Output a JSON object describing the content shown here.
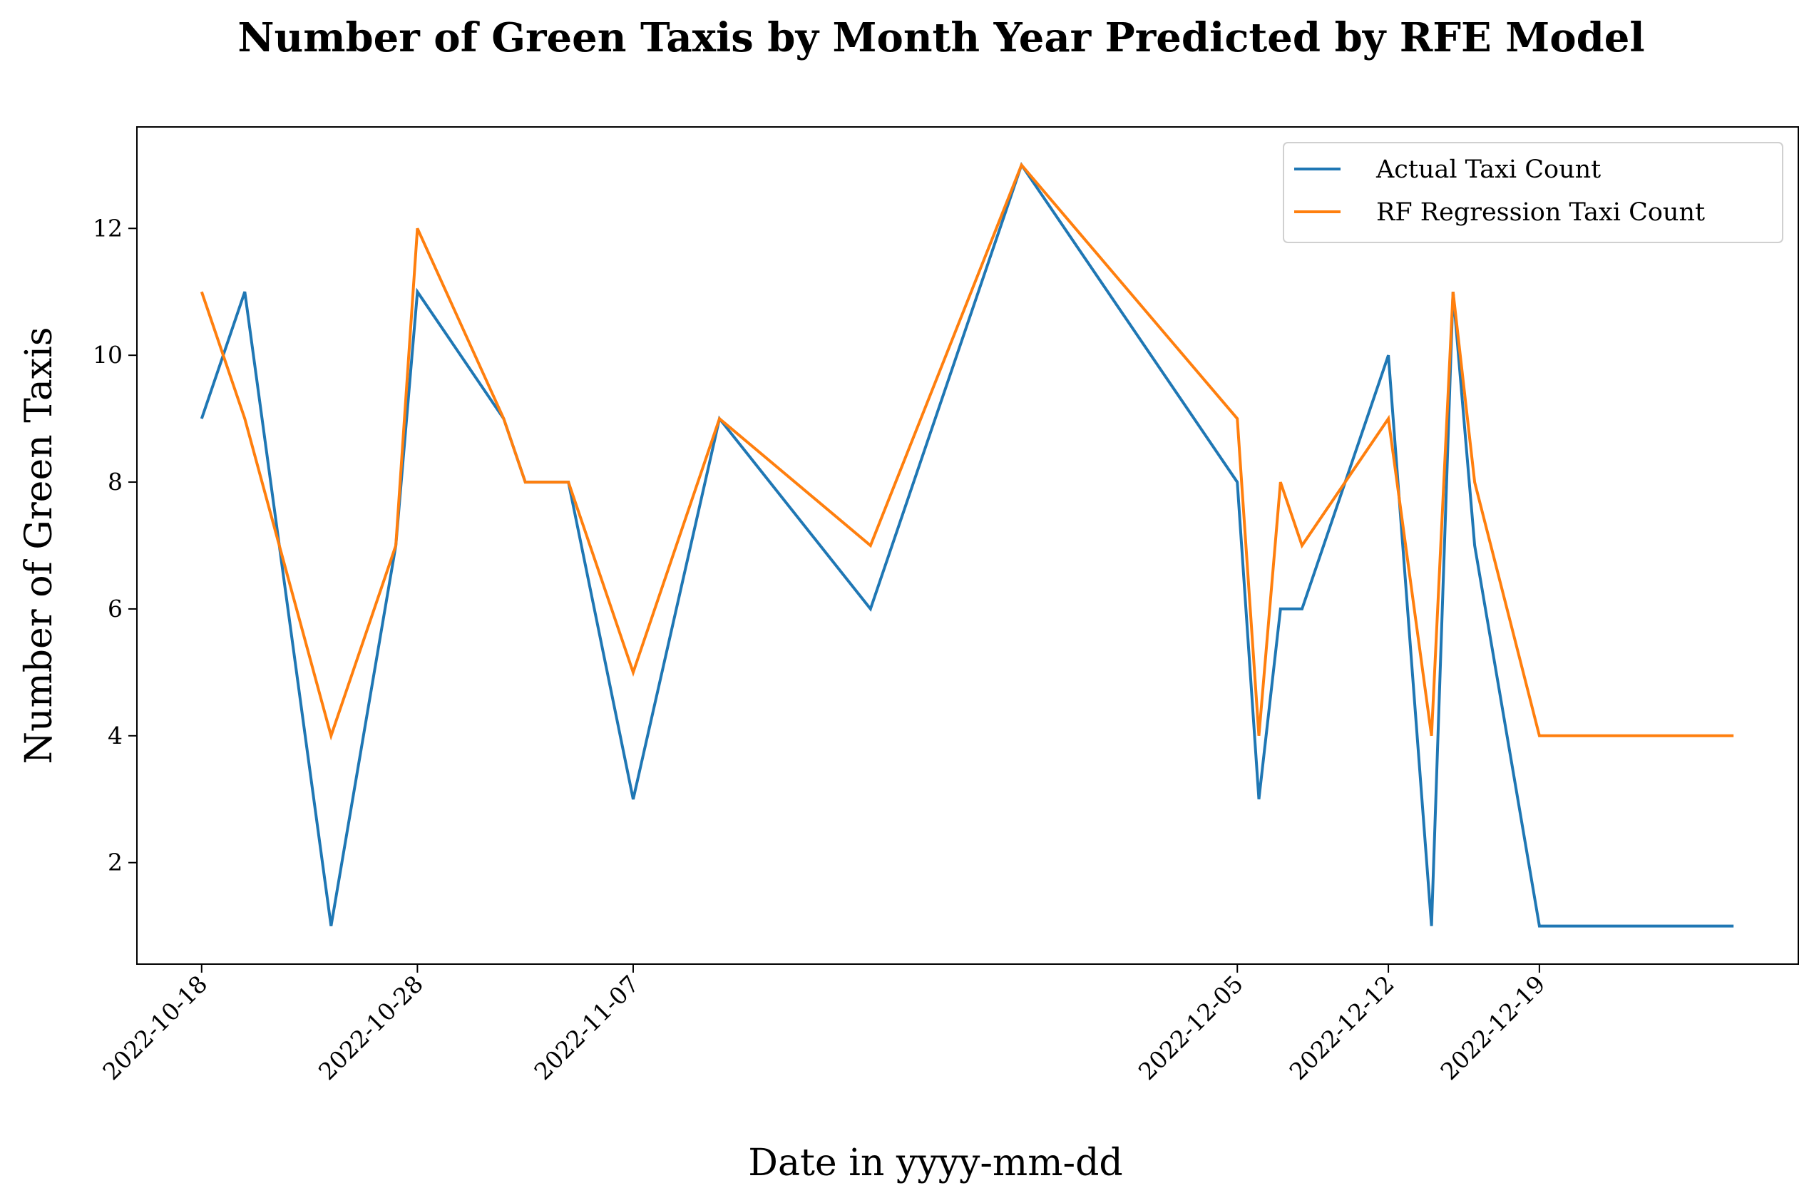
{
  "chart_data": {
    "type": "line",
    "title": "Number of Green Taxis by Month Year Predicted by RFE Model",
    "xlabel": "Date in yyyy-mm-dd",
    "ylabel": "Number of Green Taxis",
    "x_range": [
      "2022-10-15",
      "2022-12-31"
    ],
    "ylim": [
      0.4,
      13.6
    ],
    "x_ticks": [
      "2022-10-18",
      "2022-10-28",
      "2022-11-07",
      "2022-12-05",
      "2022-12-12",
      "2022-12-19"
    ],
    "y_ticks": [
      2,
      4,
      6,
      8,
      10,
      12
    ],
    "grid": false,
    "legend": "top-right",
    "series": [
      {
        "name": "Actual Taxi Count",
        "color": "#1f77b4",
        "points": [
          [
            "2022-10-18",
            9
          ],
          [
            "2022-10-20",
            11
          ],
          [
            "2022-10-24",
            1
          ],
          [
            "2022-10-27",
            7
          ],
          [
            "2022-10-28",
            11
          ],
          [
            "2022-11-01",
            9
          ],
          [
            "2022-11-02",
            8
          ],
          [
            "2022-11-04",
            8
          ],
          [
            "2022-11-07",
            3
          ],
          [
            "2022-11-11",
            9
          ],
          [
            "2022-11-18",
            6
          ],
          [
            "2022-11-25",
            13
          ],
          [
            "2022-12-05",
            8
          ],
          [
            "2022-12-06",
            3
          ],
          [
            "2022-12-07",
            6
          ],
          [
            "2022-12-08",
            6
          ],
          [
            "2022-12-12",
            10
          ],
          [
            "2022-12-14",
            1
          ],
          [
            "2022-12-15",
            11
          ],
          [
            "2022-12-16",
            7
          ],
          [
            "2022-12-19",
            1
          ],
          [
            "2022-12-28",
            1
          ]
        ]
      },
      {
        "name": "RF Regression Taxi Count",
        "color": "#ff7f0e",
        "points": [
          [
            "2022-10-18",
            11
          ],
          [
            "2022-10-20",
            9
          ],
          [
            "2022-10-24",
            4
          ],
          [
            "2022-10-27",
            7
          ],
          [
            "2022-10-28",
            12
          ],
          [
            "2022-11-01",
            9
          ],
          [
            "2022-11-02",
            8
          ],
          [
            "2022-11-04",
            8
          ],
          [
            "2022-11-07",
            5
          ],
          [
            "2022-11-11",
            9
          ],
          [
            "2022-11-18",
            7
          ],
          [
            "2022-11-25",
            13
          ],
          [
            "2022-12-05",
            9
          ],
          [
            "2022-12-06",
            4
          ],
          [
            "2022-12-07",
            8
          ],
          [
            "2022-12-08",
            7
          ],
          [
            "2022-12-12",
            9
          ],
          [
            "2022-12-14",
            4
          ],
          [
            "2022-12-15",
            11
          ],
          [
            "2022-12-16",
            8
          ],
          [
            "2022-12-19",
            4
          ],
          [
            "2022-12-28",
            4
          ]
        ]
      }
    ]
  }
}
